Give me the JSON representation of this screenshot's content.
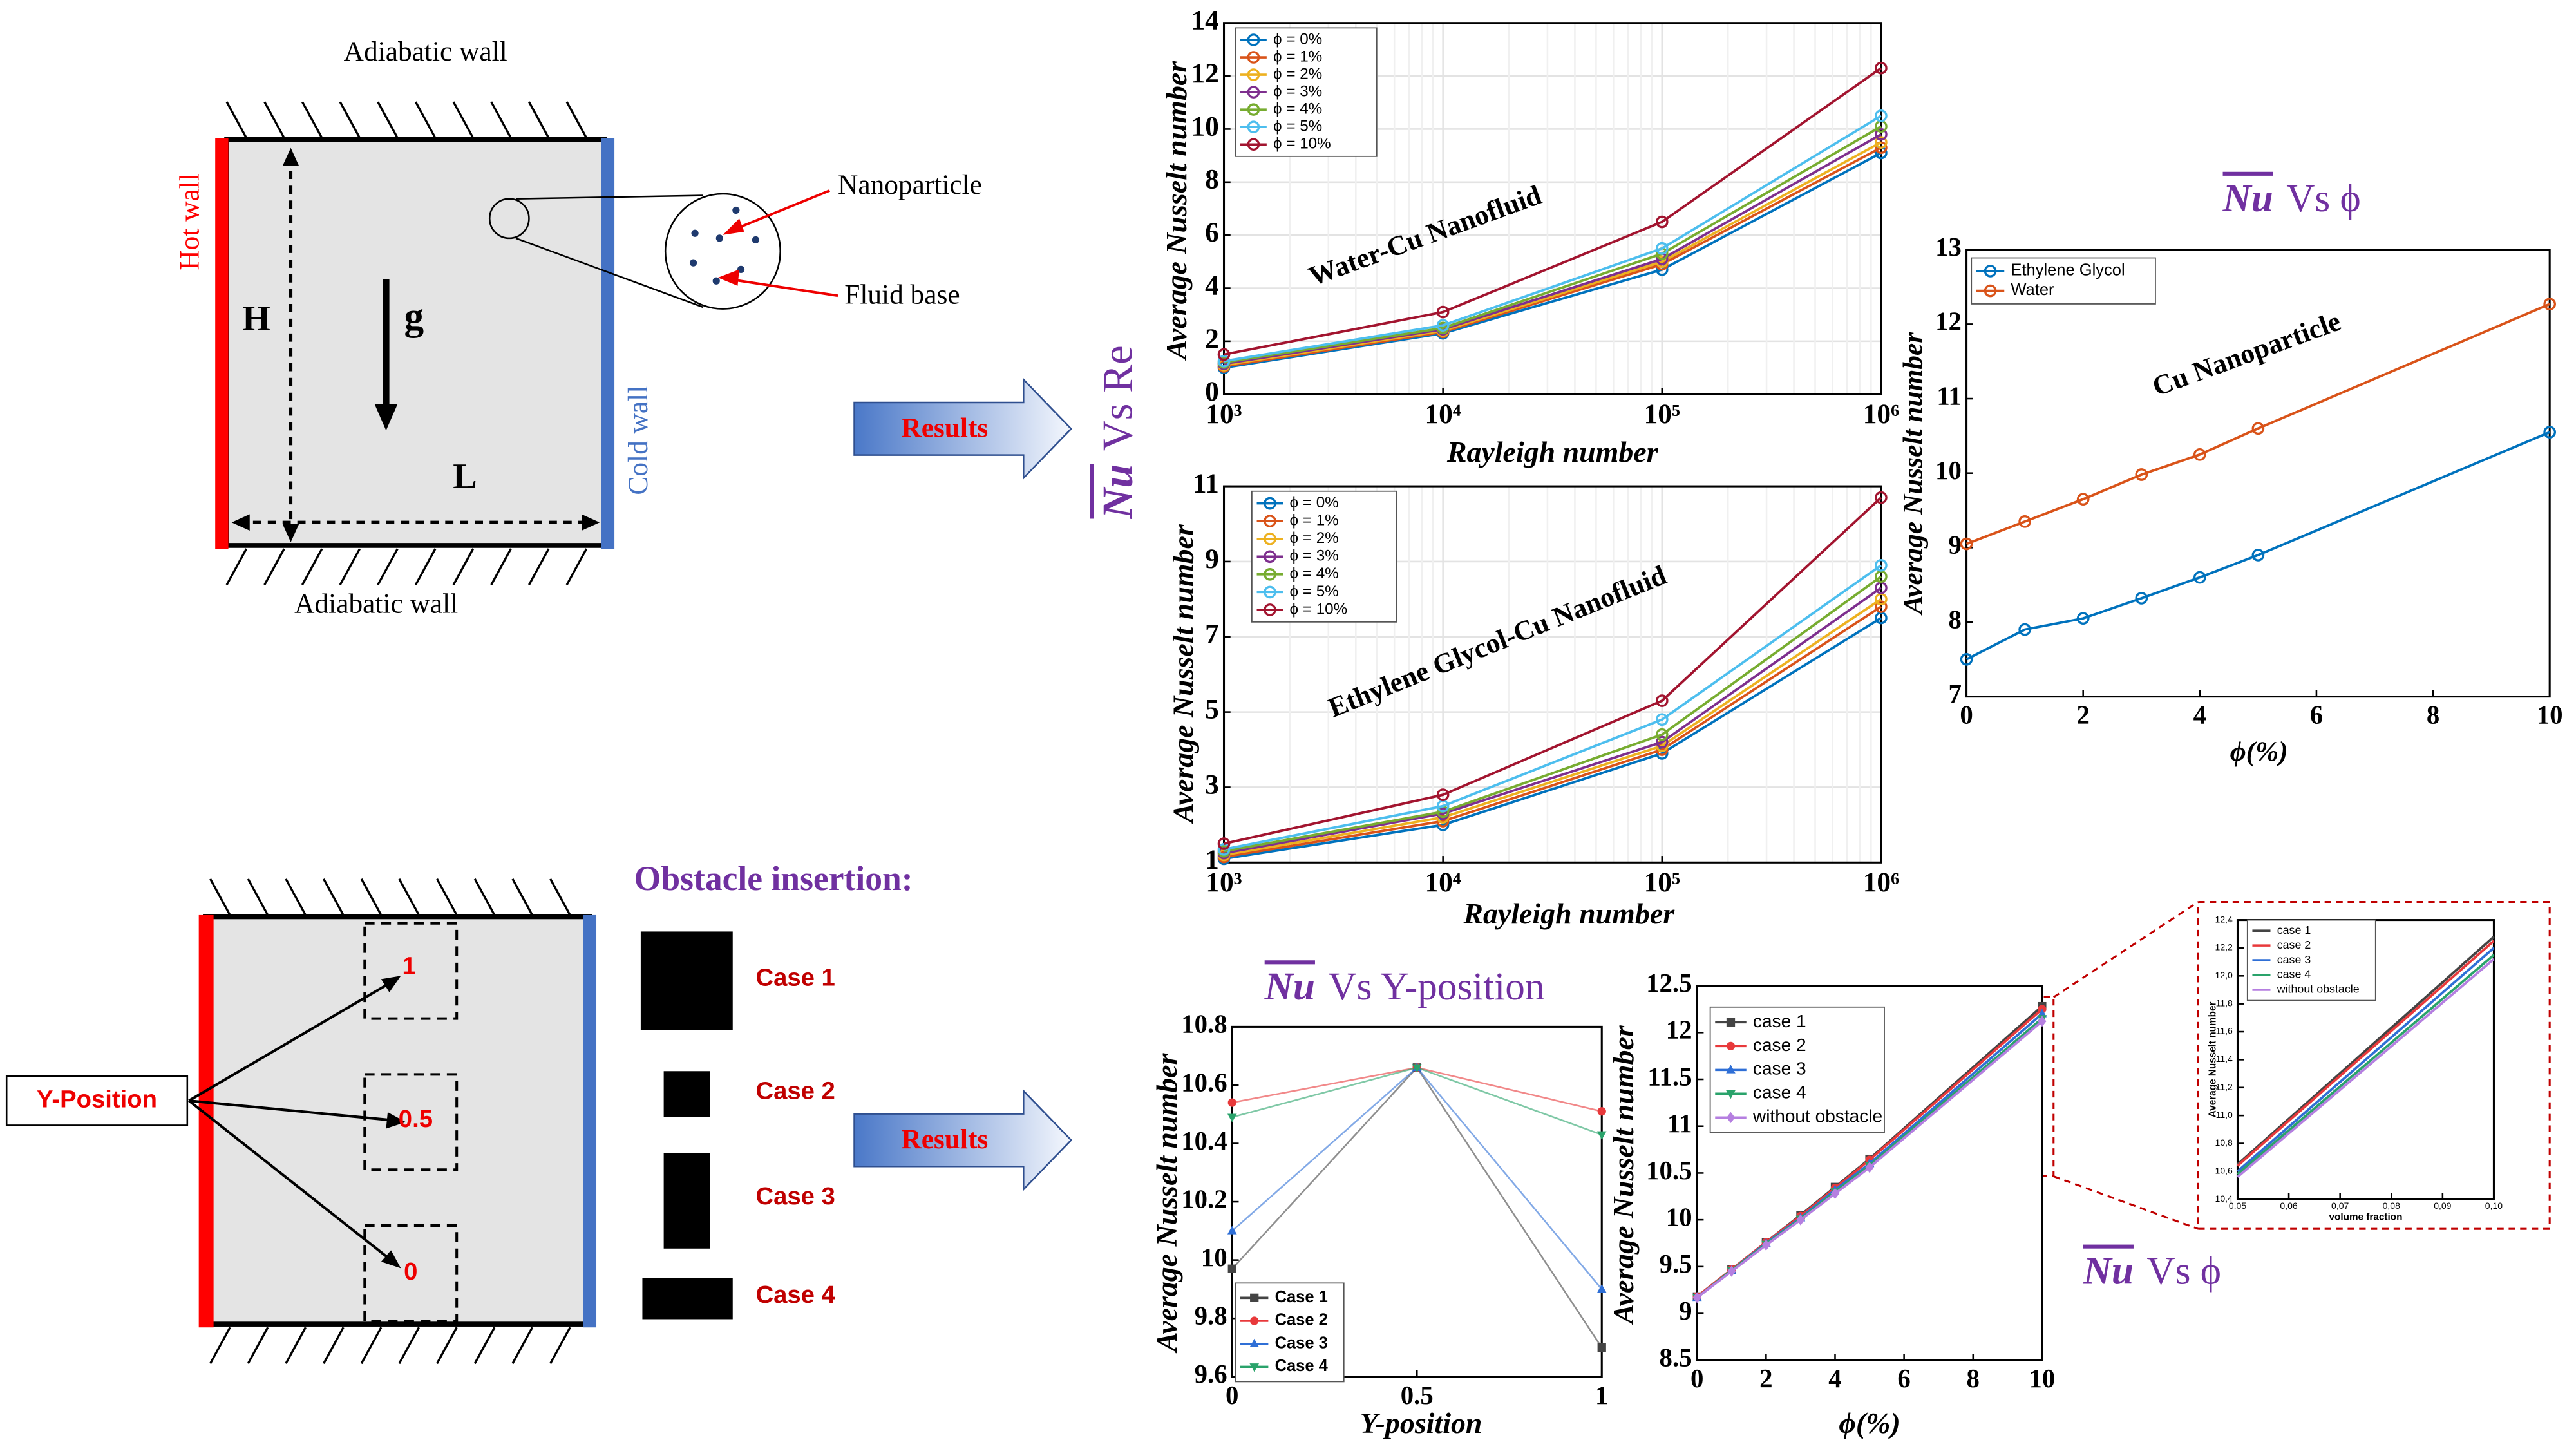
{
  "diagram": {
    "top_wall": "Adiabatic wall",
    "bottom_wall": "Adiabatic wall",
    "hot_wall": "Hot wall",
    "cold_wall": "Cold wall",
    "height": "H",
    "gravity": "g",
    "length": "L",
    "nanoparticle": "Nanoparticle",
    "fluid_base": "Fluid base",
    "results_1": "Results",
    "results_2": "Results",
    "side_title": {
      "symbol": "Nu",
      "text": "Vs Re"
    },
    "obstacle_title": "Obstacle insertion:",
    "cases": [
      "Case 1",
      "Case 2",
      "Case 3",
      "Case 4"
    ],
    "y_position": "Y-Position",
    "positions": [
      "1",
      "0.5",
      "0"
    ]
  },
  "chart_data": [
    {
      "type": "line",
      "annotation": "Water-Cu Nanofluid",
      "x_label": "Rayleigh number",
      "y_label": "Average Nusselt number",
      "x_scale": "log",
      "grid": true,
      "x": [
        1000,
        10000,
        100000,
        1000000
      ],
      "xlim": [
        1000,
        1000000
      ],
      "xticks": [
        {
          "value": 1000,
          "label": "10³"
        },
        {
          "value": 10000,
          "label": "10⁴"
        },
        {
          "value": 100000,
          "label": "10⁵"
        },
        {
          "value": 1000000,
          "label": "10⁶"
        }
      ],
      "ylim": [
        0,
        14
      ],
      "yticks": [
        0,
        2,
        4,
        6,
        8,
        10,
        12,
        14
      ],
      "marker": "circle",
      "series": [
        {
          "name": "ϕ = 0%",
          "color": "#0072bd",
          "values": [
            1.0,
            2.3,
            4.7,
            9.1
          ]
        },
        {
          "name": "ϕ = 1%",
          "color": "#d95319",
          "values": [
            1.05,
            2.35,
            4.9,
            9.3
          ]
        },
        {
          "name": "ϕ = 2%",
          "color": "#edb120",
          "values": [
            1.1,
            2.4,
            5.0,
            9.5
          ]
        },
        {
          "name": "ϕ = 3%",
          "color": "#7e2f8e",
          "values": [
            1.15,
            2.45,
            5.1,
            9.8
          ]
        },
        {
          "name": "ϕ = 4%",
          "color": "#77ac30",
          "values": [
            1.2,
            2.5,
            5.3,
            10.1
          ]
        },
        {
          "name": "ϕ = 5%",
          "color": "#4dbeee",
          "values": [
            1.25,
            2.6,
            5.5,
            10.5
          ]
        },
        {
          "name": "ϕ = 10%",
          "color": "#a2142f",
          "values": [
            1.5,
            3.1,
            6.5,
            12.3
          ]
        }
      ]
    },
    {
      "type": "line",
      "annotation": "Ethylene Glycol-Cu Nanofluid",
      "x_label": "Rayleigh number",
      "y_label": "Average Nusselt number",
      "x_scale": "log",
      "grid": true,
      "x": [
        1000,
        10000,
        100000,
        1000000
      ],
      "xlim": [
        1000,
        1000000
      ],
      "xticks": [
        {
          "value": 1000,
          "label": "10³"
        },
        {
          "value": 10000,
          "label": "10⁴"
        },
        {
          "value": 100000,
          "label": "10⁵"
        },
        {
          "value": 1000000,
          "label": "10⁶"
        }
      ],
      "ylim": [
        1,
        11
      ],
      "yticks": [
        1,
        3,
        5,
        7,
        9,
        11
      ],
      "marker": "circle",
      "series": [
        {
          "name": "ϕ = 0%",
          "color": "#0072bd",
          "values": [
            1.1,
            2.0,
            3.9,
            7.5
          ]
        },
        {
          "name": "ϕ = 1%",
          "color": "#d95319",
          "values": [
            1.15,
            2.1,
            4.0,
            7.8
          ]
        },
        {
          "name": "ϕ = 2%",
          "color": "#edb120",
          "values": [
            1.2,
            2.2,
            4.1,
            8.0
          ]
        },
        {
          "name": "ϕ = 3%",
          "color": "#7e2f8e",
          "values": [
            1.25,
            2.3,
            4.2,
            8.3
          ]
        },
        {
          "name": "ϕ = 4%",
          "color": "#77ac30",
          "values": [
            1.3,
            2.35,
            4.4,
            8.6
          ]
        },
        {
          "name": "ϕ = 5%",
          "color": "#4dbeee",
          "values": [
            1.35,
            2.5,
            4.8,
            8.9
          ]
        },
        {
          "name": "ϕ = 10%",
          "color": "#a2142f",
          "values": [
            1.5,
            2.8,
            5.3,
            10.7
          ]
        }
      ]
    },
    {
      "type": "line",
      "title_symbol": "Nu",
      "title": "Vs ϕ",
      "annotation": "Cu Nanoparticle",
      "x_label": "ϕ(%)",
      "y_label": "Average Nusselt number",
      "grid": false,
      "x": [
        0,
        1,
        2,
        3,
        4,
        5,
        10
      ],
      "xlim": [
        0,
        10
      ],
      "xticks": [
        0,
        2,
        4,
        6,
        8,
        10
      ],
      "ylim": [
        7,
        13
      ],
      "yticks": [
        7,
        8,
        9,
        10,
        11,
        12,
        13
      ],
      "marker": "circle",
      "series": [
        {
          "name": "Ethylene Glycol",
          "color": "#0072bd",
          "values": [
            7.5,
            7.9,
            8.05,
            8.32,
            8.6,
            8.9,
            10.55
          ]
        },
        {
          "name": "Water",
          "color": "#d95319",
          "values": [
            9.05,
            9.35,
            9.65,
            9.98,
            10.25,
            10.6,
            12.27
          ]
        }
      ]
    },
    {
      "type": "line",
      "title_symbol": "Nu",
      "title": "Vs Y-position",
      "x_label": "Y-position",
      "y_label": "Average Nusselt number",
      "grid": false,
      "x": [
        0,
        0.5,
        1
      ],
      "xlim": [
        0,
        1
      ],
      "xticks": [
        0,
        0.5,
        1
      ],
      "ylim": [
        9.6,
        10.8
      ],
      "yticks": [
        9.6,
        9.8,
        10,
        10.2,
        10.4,
        10.6,
        10.8
      ],
      "series": [
        {
          "name": "Case 1",
          "color": "#444444",
          "marker": "square",
          "values": [
            9.97,
            10.66,
            9.7
          ]
        },
        {
          "name": "Case 2",
          "color": "#e8393b",
          "marker": "dot",
          "values": [
            10.54,
            10.66,
            10.51
          ]
        },
        {
          "name": "Case 3",
          "color": "#2f6fd6",
          "marker": "triangle",
          "values": [
            10.1,
            10.66,
            9.9
          ]
        },
        {
          "name": "Case 4",
          "color": "#2aa36b",
          "marker": "triangle-down",
          "values": [
            10.49,
            10.66,
            10.43
          ]
        }
      ]
    },
    {
      "type": "line",
      "title_symbol": "Nu",
      "title": "Vs ϕ",
      "x_label": "ϕ(%)",
      "y_label": "Average Nusselt number",
      "grid": false,
      "x": [
        0,
        1,
        2,
        3,
        4,
        5,
        10
      ],
      "xlim": [
        0,
        10
      ],
      "xticks": [
        0,
        2,
        4,
        6,
        8,
        10
      ],
      "ylim": [
        8.5,
        12.5
      ],
      "yticks": [
        8.5,
        9,
        9.5,
        10,
        10.5,
        11,
        11.5,
        12,
        12.5
      ],
      "series": [
        {
          "name": "case 1",
          "color": "#444444",
          "marker": "square",
          "values": [
            9.18,
            9.47,
            9.76,
            10.05,
            10.35,
            10.65,
            12.28
          ]
        },
        {
          "name": "case 2",
          "color": "#e8393b",
          "marker": "dot",
          "values": [
            9.18,
            9.47,
            9.76,
            10.04,
            10.34,
            10.64,
            12.25
          ]
        },
        {
          "name": "case 3",
          "color": "#2f6fd6",
          "marker": "triangle",
          "values": [
            9.17,
            9.46,
            9.75,
            10.02,
            10.32,
            10.6,
            12.2
          ]
        },
        {
          "name": "case 4",
          "color": "#2aa36b",
          "marker": "triangle-down",
          "values": [
            9.17,
            9.46,
            9.74,
            10.01,
            10.3,
            10.58,
            12.15
          ]
        },
        {
          "name": "without obstacle",
          "color": "#b57fe0",
          "marker": "diamond",
          "values": [
            9.17,
            9.45,
            9.73,
            10.0,
            10.28,
            10.56,
            12.12
          ]
        }
      ]
    },
    {
      "type": "line",
      "x_label": "volume fraction",
      "y_label": "Average Nusselt number",
      "grid": false,
      "x": [
        0.05,
        0.1
      ],
      "xlim": [
        0.05,
        0.1
      ],
      "xticks": [
        {
          "value": 0.05,
          "label": "0,05"
        },
        {
          "value": 0.06,
          "label": "0,06"
        },
        {
          "value": 0.07,
          "label": "0,07"
        },
        {
          "value": 0.08,
          "label": "0,08"
        },
        {
          "value": 0.09,
          "label": "0,09"
        },
        {
          "value": 0.1,
          "label": "0,10"
        }
      ],
      "ylim": [
        10.4,
        12.4
      ],
      "yticks": [
        {
          "value": 10.4,
          "label": "10,4"
        },
        {
          "value": 10.6,
          "label": "10,6"
        },
        {
          "value": 10.8,
          "label": "10,8"
        },
        {
          "value": 11,
          "label": "11,0"
        },
        {
          "value": 11.2,
          "label": "11,2"
        },
        {
          "value": 11.4,
          "label": "11,4"
        },
        {
          "value": 11.6,
          "label": "11,6"
        },
        {
          "value": 11.8,
          "label": "11,8"
        },
        {
          "value": 12,
          "label": "12,0"
        },
        {
          "value": 12.2,
          "label": "12,2"
        },
        {
          "value": 12.4,
          "label": "12,4"
        }
      ],
      "series": [
        {
          "name": "case 1",
          "color": "#444444",
          "values": [
            10.65,
            12.28
          ]
        },
        {
          "name": "case 2",
          "color": "#e8393b",
          "values": [
            10.64,
            12.25
          ]
        },
        {
          "name": "case 3",
          "color": "#2f6fd6",
          "values": [
            10.6,
            12.2
          ]
        },
        {
          "name": "case 4",
          "color": "#2aa36b",
          "values": [
            10.58,
            12.15
          ]
        },
        {
          "name": "without obstacle",
          "color": "#b57fe0",
          "values": [
            10.56,
            12.12
          ]
        }
      ]
    }
  ]
}
